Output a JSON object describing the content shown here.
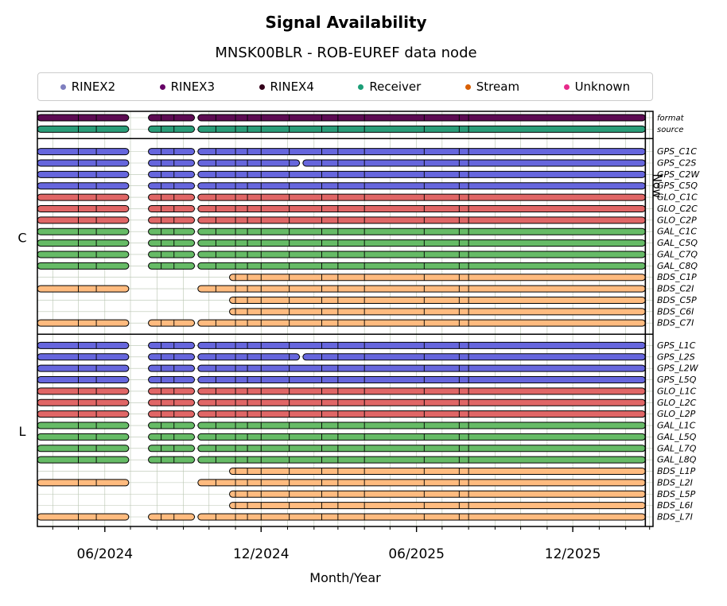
{
  "chart_data": {
    "type": "timeline",
    "title": "Signal Availability",
    "subtitle": "MNSK00BLR - ROB-EUREF data node",
    "xlabel": "Month/Year",
    "x_ticks": [
      "06/2024",
      "12/2024",
      "06/2025",
      "12/2025"
    ],
    "x_range": [
      "2024-03-14",
      "2026-03-05"
    ],
    "now_date": "2026-02-24",
    "now_label": "Now",
    "legend": [
      {
        "label": "RINEX2",
        "color": "#7f7fbf"
      },
      {
        "label": "RINEX3",
        "color": "#660066"
      },
      {
        "label": "RINEX4",
        "color": "#33001a"
      },
      {
        "label": "Receiver",
        "color": "#1b9e77"
      },
      {
        "label": "Stream",
        "color": "#d95f02"
      },
      {
        "label": "Unknown",
        "color": "#e7298a"
      }
    ],
    "colors": {
      "format": "#5c0a52",
      "source": "#2a9d78",
      "GPS": "#6666dd",
      "GLO": "#e06666",
      "GAL": "#66bb66",
      "BDS": "#ffbb7f"
    },
    "segment_sets": {
      "full": [
        [
          "2024-03-14",
          "2024-06-29"
        ],
        [
          "2024-07-22",
          "2024-09-14"
        ],
        [
          "2024-09-18",
          "2026-02-24"
        ]
      ],
      "gps2": [
        [
          "2024-03-14",
          "2024-06-29"
        ],
        [
          "2024-07-22",
          "2024-09-14"
        ],
        [
          "2024-09-18",
          "2025-01-15"
        ],
        [
          "2025-01-19",
          "2026-02-24"
        ]
      ],
      "c2i": [
        [
          "2024-03-14",
          "2024-06-29"
        ],
        [
          "2024-09-18",
          "2026-02-24"
        ]
      ],
      "bdsnew": [
        [
          "2024-10-25",
          "2026-02-24"
        ]
      ]
    },
    "break_points": [
      "2024-05-01",
      "2024-05-22",
      "2024-08-06",
      "2024-08-21",
      "2024-10-09",
      "2024-11-01",
      "2024-11-15",
      "2024-12-01",
      "2025-01-03",
      "2025-02-10",
      "2025-03-01",
      "2025-04-01",
      "2025-06-10",
      "2025-07-21",
      "2025-08-01"
    ],
    "sections": [
      {
        "name": "",
        "rows": [
          {
            "label": "format",
            "color": "format",
            "set": "full"
          },
          {
            "label": "source",
            "color": "source",
            "set": "full"
          }
        ]
      },
      {
        "name": "C",
        "rows": [
          {
            "label": "GPS_C1C",
            "color": "GPS",
            "set": "full"
          },
          {
            "label": "GPS_C2S",
            "color": "GPS",
            "set": "gps2"
          },
          {
            "label": "GPS_C2W",
            "color": "GPS",
            "set": "full"
          },
          {
            "label": "GPS_C5Q",
            "color": "GPS",
            "set": "full"
          },
          {
            "label": "GLO_C1C",
            "color": "GLO",
            "set": "full"
          },
          {
            "label": "GLO_C2C",
            "color": "GLO",
            "set": "full"
          },
          {
            "label": "GLO_C2P",
            "color": "GLO",
            "set": "full"
          },
          {
            "label": "GAL_C1C",
            "color": "GAL",
            "set": "full"
          },
          {
            "label": "GAL_C5Q",
            "color": "GAL",
            "set": "full"
          },
          {
            "label": "GAL_C7Q",
            "color": "GAL",
            "set": "full"
          },
          {
            "label": "GAL_C8Q",
            "color": "GAL",
            "set": "full"
          },
          {
            "label": "BDS_C1P",
            "color": "BDS",
            "set": "bdsnew"
          },
          {
            "label": "BDS_C2I",
            "color": "BDS",
            "set": "c2i"
          },
          {
            "label": "BDS_C5P",
            "color": "BDS",
            "set": "bdsnew"
          },
          {
            "label": "BDS_C6I",
            "color": "BDS",
            "set": "bdsnew"
          },
          {
            "label": "BDS_C7I",
            "color": "BDS",
            "set": "full"
          }
        ]
      },
      {
        "name": "L",
        "rows": [
          {
            "label": "GPS_L1C",
            "color": "GPS",
            "set": "full"
          },
          {
            "label": "GPS_L2S",
            "color": "GPS",
            "set": "gps2"
          },
          {
            "label": "GPS_L2W",
            "color": "GPS",
            "set": "full"
          },
          {
            "label": "GPS_L5Q",
            "color": "GPS",
            "set": "full"
          },
          {
            "label": "GLO_L1C",
            "color": "GLO",
            "set": "full"
          },
          {
            "label": "GLO_L2C",
            "color": "GLO",
            "set": "full"
          },
          {
            "label": "GLO_L2P",
            "color": "GLO",
            "set": "full"
          },
          {
            "label": "GAL_L1C",
            "color": "GAL",
            "set": "full"
          },
          {
            "label": "GAL_L5Q",
            "color": "GAL",
            "set": "full"
          },
          {
            "label": "GAL_L7Q",
            "color": "GAL",
            "set": "full"
          },
          {
            "label": "GAL_L8Q",
            "color": "GAL",
            "set": "full"
          },
          {
            "label": "BDS_L1P",
            "color": "BDS",
            "set": "bdsnew"
          },
          {
            "label": "BDS_L2I",
            "color": "BDS",
            "set": "c2i"
          },
          {
            "label": "BDS_L5P",
            "color": "BDS",
            "set": "bdsnew"
          },
          {
            "label": "BDS_L6I",
            "color": "BDS",
            "set": "bdsnew"
          },
          {
            "label": "BDS_L7I",
            "color": "BDS",
            "set": "full"
          }
        ]
      }
    ]
  }
}
